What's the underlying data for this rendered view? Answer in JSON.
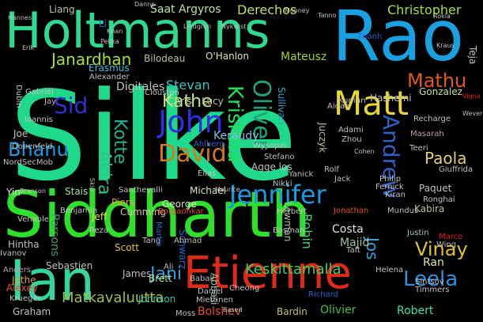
{
  "words": [
    {
      "text": "Silke",
      "color": "#1fd98a",
      "rotate": 0
    },
    {
      "text": "Siddharth",
      "color": "#2fe02a",
      "rotate": 0
    },
    {
      "text": "Holtmanns",
      "color": "#2fd98f",
      "rotate": 0
    },
    {
      "text": "Rao",
      "color": "#18a0e0",
      "rotate": 0
    },
    {
      "text": "Etienne",
      "color": "#e02a18",
      "rotate": 0
    },
    {
      "text": "Ian",
      "color": "#35d5a2",
      "rotate": 0
    },
    {
      "text": "Matt",
      "color": "#e6d832",
      "rotate": 0
    },
    {
      "text": "Jennifer",
      "color": "#1a9ae0",
      "rotate": 0
    },
    {
      "text": "John",
      "color": "#3030e0",
      "rotate": 0
    },
    {
      "text": "David",
      "color": "#d07a20",
      "rotate": 0
    },
    {
      "text": "Kathe",
      "color": "#c9e080",
      "rotate": 0
    },
    {
      "text": "Oliver",
      "color": "#20a080",
      "rotate": 90
    },
    {
      "text": "Krishna",
      "color": "#20e05a",
      "rotate": 90
    },
    {
      "text": "Andrew",
      "color": "#3060c0",
      "rotate": 90
    },
    {
      "text": "Bhanu",
      "color": "#1a9ae0",
      "rotate": 0
    },
    {
      "text": "Sid",
      "color": "#3030d0",
      "rotate": 0
    },
    {
      "text": "Mathu",
      "color": "#e05a18",
      "rotate": 0
    },
    {
      "text": "Leela",
      "color": "#3090e0",
      "rotate": 0
    },
    {
      "text": "Vinay",
      "color": "#e0c030",
      "rotate": 0
    },
    {
      "text": "Jani",
      "color": "#30a0e0",
      "rotate": 0
    },
    {
      "text": "Christopher",
      "color": "#a0e040",
      "rotate": 0
    },
    {
      "text": "Janardhan",
      "color": "#a0e040",
      "rotate": 0
    },
    {
      "text": "Akira",
      "color": "#30c090",
      "rotate": 90
    },
    {
      "text": "Kotte",
      "color": "#20b090",
      "rotate": 90
    },
    {
      "text": "Paola",
      "color": "#e0d070",
      "rotate": 0
    },
    {
      "text": "Matkavaluutta",
      "color": "#a0c040",
      "rotate": 0
    },
    {
      "text": "Keskittamalla",
      "color": "#40d060",
      "rotate": 0
    },
    {
      "text": "Stevan",
      "color": "#40c0c0",
      "rotate": 0
    },
    {
      "text": "Derechos",
      "color": "#c0e060",
      "rotate": 0
    },
    {
      "text": "Saat Argyros",
      "color": "#c0e0a0",
      "rotate": 0
    },
    {
      "text": "Mateusz",
      "color": "#a0d040",
      "rotate": 0
    },
    {
      "text": "Gonzalez",
      "color": "#c0e0a0",
      "rotate": 0
    },
    {
      "text": "Keraudy",
      "color": "#80c0e0",
      "rotate": 0
    },
    {
      "text": "Parsons",
      "color": "#40a070",
      "rotate": 90
    },
    {
      "text": "Jos",
      "color": "#30a0e0",
      "rotate": 90
    },
    {
      "text": "Robin",
      "color": "#40d080",
      "rotate": 90
    },
    {
      "text": "Johnson",
      "color": "#40c0b0",
      "rotate": 0
    },
    {
      "text": "Bolshev",
      "color": "#e05030",
      "rotate": 0
    },
    {
      "text": "Olivier",
      "color": "#40c040",
      "rotate": 0
    },
    {
      "text": "Robert",
      "color": "#40e0a0",
      "rotate": 0
    },
    {
      "text": "Bardin",
      "color": "#c0c070",
      "rotate": 0
    },
    {
      "text": "Graham",
      "color": "#c0c0c0",
      "rotate": 0
    },
    {
      "text": "Costa",
      "color": "#e0e0e0",
      "rotate": 0
    },
    {
      "text": "Majid",
      "color": "#a0c0a0",
      "rotate": 0
    },
    {
      "text": "Ran",
      "color": "#e0e0a0",
      "rotate": 0
    },
    {
      "text": "Schwarz",
      "color": "#3060d0",
      "rotate": 90
    },
    {
      "text": "Michael",
      "color": "#e0e0c0",
      "rotate": 0
    },
    {
      "text": "George",
      "color": "#e0e0c0",
      "rotate": 0
    },
    {
      "text": "Piers",
      "color": "#e0a040",
      "rotate": 0
    },
    {
      "text": "Jeff",
      "color": "#e0e040",
      "rotate": 0
    },
    {
      "text": "Stais",
      "color": "#a0e0a0",
      "rotate": 0
    },
    {
      "text": "Joe",
      "color": "#c0c0c0",
      "rotate": 0
    },
    {
      "text": "Chris",
      "color": "#c0e080",
      "rotate": 0
    },
    {
      "text": "Lucy",
      "color": "#c0c0a0",
      "rotate": 0
    },
    {
      "text": "Digitales",
      "color": "#c0c0c0",
      "rotate": 0
    },
    {
      "text": "Bilodeau",
      "color": "#c0c0a0",
      "rotate": 0
    },
    {
      "text": "O'Hanlon",
      "color": "#e0e0c0",
      "rotate": 0
    },
    {
      "text": "Erasmus",
      "color": "#40c0e0",
      "rotate": 0
    },
    {
      "text": "Alexander",
      "color": "#c0c0c0",
      "rotate": 0
    },
    {
      "text": "Liang",
      "color": "#c0c0a0",
      "rotate": 0
    },
    {
      "text": "Juczyk",
      "color": "#c0c0a0",
      "rotate": 90
    },
    {
      "text": "Lewman",
      "color": "#a0c0a0",
      "rotate": 90
    },
    {
      "text": "Abbasi",
      "color": "#a0c0a0",
      "rotate": 90
    },
    {
      "text": "Sullivan",
      "color": "#30a0d0",
      "rotate": 90
    },
    {
      "text": "Hashemi",
      "color": "#c0c0c0",
      "rotate": 0
    },
    {
      "text": "Justin",
      "color": "#a0c0c0",
      "rotate": 0
    },
    {
      "text": "Ronghai",
      "color": "#c0c0c0",
      "rotate": 0
    },
    {
      "text": "Kabira",
      "color": "#c0c0a0",
      "rotate": 0
    },
    {
      "text": "Paquet",
      "color": "#c0c0c0",
      "rotate": 0
    },
    {
      "text": "Giuffrida",
      "color": "#c0c0c0",
      "rotate": 0
    },
    {
      "text": "Sebastien",
      "color": "#c0c0c0",
      "rotate": 0
    },
    {
      "text": "Jothe",
      "color": "#e0a040",
      "rotate": 0
    },
    {
      "text": "Alexey",
      "color": "#e05030",
      "rotate": 0
    },
    {
      "text": "Anders",
      "color": "#c0a0a0",
      "rotate": 0
    },
    {
      "text": "Wing",
      "color": "#c0c0c0",
      "rotate": 0
    },
    {
      "text": "Marco",
      "color": "#e02020",
      "rotate": 0
    },
    {
      "text": "Scott",
      "color": "#e0c040",
      "rotate": 0
    },
    {
      "text": "Brett",
      "color": "#c0e080",
      "rotate": 0
    },
    {
      "text": "James",
      "color": "#c0c0c0",
      "rotate": 0
    },
    {
      "text": "Ali",
      "color": "#c0c0c0",
      "rotate": 0
    },
    {
      "text": "Ahmad",
      "color": "#c0c0a0",
      "rotate": 0
    },
    {
      "text": "Tang",
      "color": "#c0c0c0",
      "rotate": 0
    },
    {
      "text": "Cumming",
      "color": "#e0c0a0",
      "rotate": 0
    },
    {
      "text": "Benjamin",
      "color": "#c0c0c0",
      "rotate": 0
    },
    {
      "text": "Venable",
      "color": "#c0c0c0",
      "rotate": 0
    },
    {
      "text": "Yin",
      "color": "#e0e0e0",
      "rotate": 0
    },
    {
      "text": "Hintha",
      "color": "#c0c0c0",
      "rotate": 0
    },
    {
      "text": "Ivanov",
      "color": "#c0c0c0",
      "rotate": 0
    },
    {
      "text": "Ioannis",
      "color": "#c0c0c0",
      "rotate": 0
    },
    {
      "text": "Jay",
      "color": "#c0c0c0",
      "rotate": 0
    },
    {
      "text": "Gabriel",
      "color": "#c0c0c0",
      "rotate": 0
    },
    {
      "text": "Dubin",
      "color": "#c0c0c0",
      "rotate": 90
    },
    {
      "text": "NordSecMob",
      "color": "#c0c0c0",
      "rotate": 0
    },
    {
      "text": "Donenfeld",
      "color": "#c0c0c0",
      "rotate": 0
    },
    {
      "text": "Adami",
      "color": "#c0c0c0",
      "rotate": 0
    },
    {
      "text": "Zhou",
      "color": "#c0c0c0",
      "rotate": 0
    },
    {
      "text": "Kuman",
      "color": "#c0c0c0",
      "rotate": 0
    },
    {
      "text": "Aidan",
      "color": "#c0c0c0",
      "rotate": 0
    },
    {
      "text": "Recharge",
      "color": "#c0c0c0",
      "rotate": 0
    },
    {
      "text": "Masarah",
      "color": "#c0a0a0",
      "rotate": 0
    },
    {
      "text": "Teeri",
      "color": "#c0c0c0",
      "rotate": 0
    },
    {
      "text": "Wysopal",
      "color": "#c0c0c0",
      "rotate": 0
    },
    {
      "text": "Stefano",
      "color": "#c0c0c0",
      "rotate": 0
    },
    {
      "text": "Agge los",
      "color": "#c0c0c0",
      "rotate": 0
    },
    {
      "text": "Elias",
      "color": "#c0c0c0",
      "rotate": 0
    },
    {
      "text": "Rolf",
      "color": "#c0c0c0",
      "rotate": 0
    },
    {
      "text": "Jack",
      "color": "#c0c0c0",
      "rotate": 0
    },
    {
      "text": "Philip",
      "color": "#c0c0c0",
      "rotate": 0
    },
    {
      "text": "Yanick",
      "color": "#c0c0c0",
      "rotate": 0
    },
    {
      "text": "Nikki",
      "color": "#c0c0c0",
      "rotate": 0
    },
    {
      "text": "Fernick",
      "color": "#c0c0c0",
      "rotate": 0
    },
    {
      "text": "Kiran",
      "color": "#c0c0c0",
      "rotate": 0
    },
    {
      "text": "Mundus",
      "color": "#c0c0c0",
      "rotate": 0
    },
    {
      "text": "Jonathan",
      "color": "#e05030",
      "rotate": 0
    },
    {
      "text": "Herbert",
      "color": "#c0c0c0",
      "rotate": 0
    },
    {
      "text": "Bosman",
      "color": "#c0c0c0",
      "rotate": 0
    },
    {
      "text": "Taft",
      "color": "#c0c0c0",
      "rotate": 0
    },
    {
      "text": "Helena",
      "color": "#c0c0c0",
      "rotate": 0
    },
    {
      "text": "Sintsov",
      "color": "#c0c0c0",
      "rotate": 0
    },
    {
      "text": "Timmers",
      "color": "#c0c0c0",
      "rotate": 0
    },
    {
      "text": "Richard",
      "color": "#3060d0",
      "rotate": 0
    },
    {
      "text": "Cheong",
      "color": "#c0c0c0",
      "rotate": 0
    },
    {
      "text": "Babak",
      "color": "#c0c0c0",
      "rotate": 0
    },
    {
      "text": "Daniel",
      "color": "#c0c0c0",
      "rotate": 0
    },
    {
      "text": "Miettinen",
      "color": "#c0c0c0",
      "rotate": 0
    },
    {
      "text": "Moss",
      "color": "#c0c0c0",
      "rotate": 0
    },
    {
      "text": "Krueger",
      "color": "#c0c0c0",
      "rotate": 0
    },
    {
      "text": "Santheyalli",
      "color": "#c0c0c0",
      "rotate": 0
    },
    {
      "text": "Borgaonkar",
      "color": "#e05030",
      "rotate": 0
    },
    {
      "text": "Reza",
      "color": "#c0c0c0",
      "rotate": 0
    },
    {
      "text": "Martin",
      "color": "#3060d0",
      "rotate": 90
    },
    {
      "text": "Maurice",
      "color": "#c0c0c0",
      "rotate": 0
    },
    {
      "text": "Branson",
      "color": "#c0c0c0",
      "rotate": 0
    },
    {
      "text": "Ahlberg",
      "color": "#3060d0",
      "rotate": 0
    },
    {
      "text": "Clouston",
      "color": "#c0c0c0",
      "rotate": 0
    },
    {
      "text": "Teja",
      "color": "#c0c0c0",
      "rotate": 90
    },
    {
      "text": "Thanh",
      "color": "#3060d0",
      "rotate": 0
    },
    {
      "text": "Mooney",
      "color": "#c0c0c0",
      "rotate": 0
    },
    {
      "text": "Danne",
      "color": "#c0c0c0",
      "rotate": 0
    },
    {
      "text": "Pekka",
      "color": "#c0c0c0",
      "rotate": 0
    },
    {
      "text": "Vigna",
      "color": "#e02020",
      "rotate": 0
    },
    {
      "text": "Wever",
      "color": "#c0c0c0",
      "rotate": 0
    },
    {
      "text": "Cohen",
      "color": "#c0c0c0",
      "rotate": 0
    },
    {
      "text": "Based",
      "color": "#c0c0c0",
      "rotate": 0
    },
    {
      "text": "Erik",
      "color": "#c0c0c0",
      "rotate": 0
    },
    {
      "text": "Skip",
      "color": "#c0c0c0",
      "rotate": 90
    },
    {
      "text": "Hannes",
      "color": "#c0c0c0",
      "rotate": 0
    },
    {
      "text": "Li",
      "color": "#3060d0",
      "rotate": 0
    },
    {
      "text": "Khan",
      "color": "#c0c0c0",
      "rotate": 0
    },
    {
      "text": "Lindgren",
      "color": "#c0c0c0",
      "rotate": 0
    },
    {
      "text": "Rokia",
      "color": "#c0c0c0",
      "rotate": 0
    },
    {
      "text": "Kraus",
      "color": "#c0c0c0",
      "rotate": 0
    },
    {
      "text": "Tanno",
      "color": "#c0c0c0",
      "rotate": 0
    },
    {
      "text": "Nykwist",
      "color": "#c0c0c0",
      "rotate": 0
    }
  ]
}
